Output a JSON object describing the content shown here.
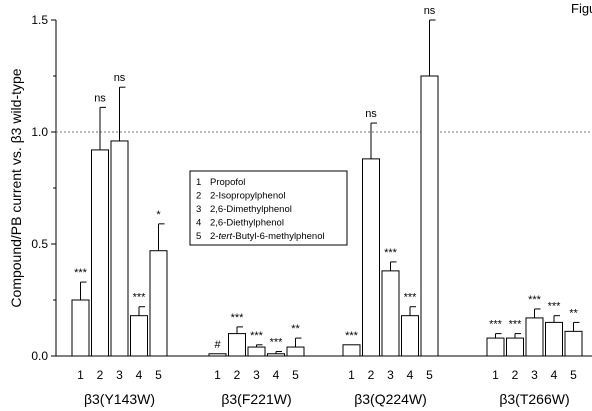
{
  "corner_label": "Figure",
  "chart_data": {
    "type": "bar",
    "ylabel": "Compound/PB current vs. β3 wild-type",
    "ylim": [
      0,
      1.5
    ],
    "yticks": [
      "0.0",
      "0.5",
      "1.0",
      "1.5"
    ],
    "reference_line": 1.0,
    "legend": {
      "placement": "center",
      "items": [
        {
          "num": "1",
          "name": "Propofol"
        },
        {
          "num": "2",
          "name": "2-Isopropylphenol"
        },
        {
          "num": "3",
          "name": "2,6-Dimethylphenol"
        },
        {
          "num": "4",
          "name": "2,6-Diethylphenol"
        },
        {
          "num": "5",
          "name_prefix": "2-",
          "name_italic": "tert",
          "name_suffix": "-Butyl-6-methylphenol"
        }
      ]
    },
    "groups": [
      {
        "label": "β3(Y143W)",
        "bar_labels": [
          "1",
          "2",
          "3",
          "4",
          "5"
        ],
        "values": [
          0.25,
          0.92,
          0.96,
          0.18,
          0.47
        ],
        "errors": [
          0.08,
          0.19,
          0.24,
          0.04,
          0.12
        ],
        "significance": [
          "***",
          "ns",
          "ns",
          "***",
          "*"
        ]
      },
      {
        "label": "β3(F221W)",
        "bar_labels": [
          "1",
          "2",
          "3",
          "4",
          "5"
        ],
        "values": [
          0.01,
          0.1,
          0.04,
          0.01,
          0.04
        ],
        "errors": [
          0.0,
          0.03,
          0.01,
          0.01,
          0.04
        ],
        "significance": [
          "#",
          "***",
          "***",
          "***",
          "**"
        ]
      },
      {
        "label": "β3(Q224W)",
        "bar_labels": [
          "1",
          "2",
          "3",
          "4",
          "5"
        ],
        "values": [
          0.05,
          0.88,
          0.38,
          0.18,
          1.25
        ],
        "errors": [
          0.0,
          0.16,
          0.04,
          0.04,
          0.25
        ],
        "significance": [
          "***",
          "ns",
          "***",
          "***",
          "ns"
        ]
      },
      {
        "label": "β3(T266W)",
        "bar_labels": [
          "1",
          "2",
          "3",
          "4",
          "5"
        ],
        "values": [
          0.08,
          0.08,
          0.17,
          0.15,
          0.11
        ],
        "errors": [
          0.02,
          0.02,
          0.04,
          0.03,
          0.04
        ],
        "significance": [
          "***",
          "***",
          "***",
          "***",
          "**"
        ]
      }
    ]
  }
}
